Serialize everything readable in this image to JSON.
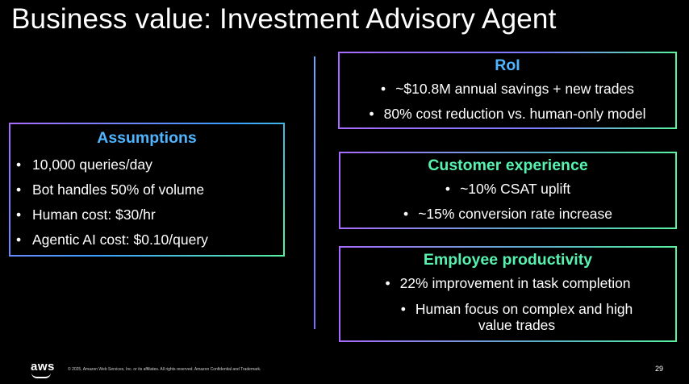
{
  "title": "Business value: Investment Advisory Agent",
  "assumptions": {
    "heading": "Assumptions",
    "items": [
      "10,000 queries/day",
      "Bot handles 50% of volume",
      "Human cost: $30/hr",
      "Agentic AI cost: $0.10/query"
    ]
  },
  "roi": {
    "heading": "RoI",
    "items": [
      "~$10.8M annual savings + new trades",
      "80% cost reduction vs. human-only model"
    ]
  },
  "customer_experience": {
    "heading": "Customer experience",
    "items": [
      "~10% CSAT uplift",
      "~15% conversion rate increase"
    ]
  },
  "employee_productivity": {
    "heading": "Employee productivity",
    "items": [
      "22% improvement in task completion",
      "Human focus on complex and high value trades"
    ]
  },
  "footer": {
    "logo_text": "aws",
    "copyright": "© 2025, Amazon Web Services, Inc. or its affiliates. All rights reserved. Amazon Confidential and Trademark.",
    "page_number": "29"
  },
  "colors": {
    "heading_blue": "#4fb5ff",
    "heading_green": "#57f2b0",
    "background": "#000000"
  }
}
